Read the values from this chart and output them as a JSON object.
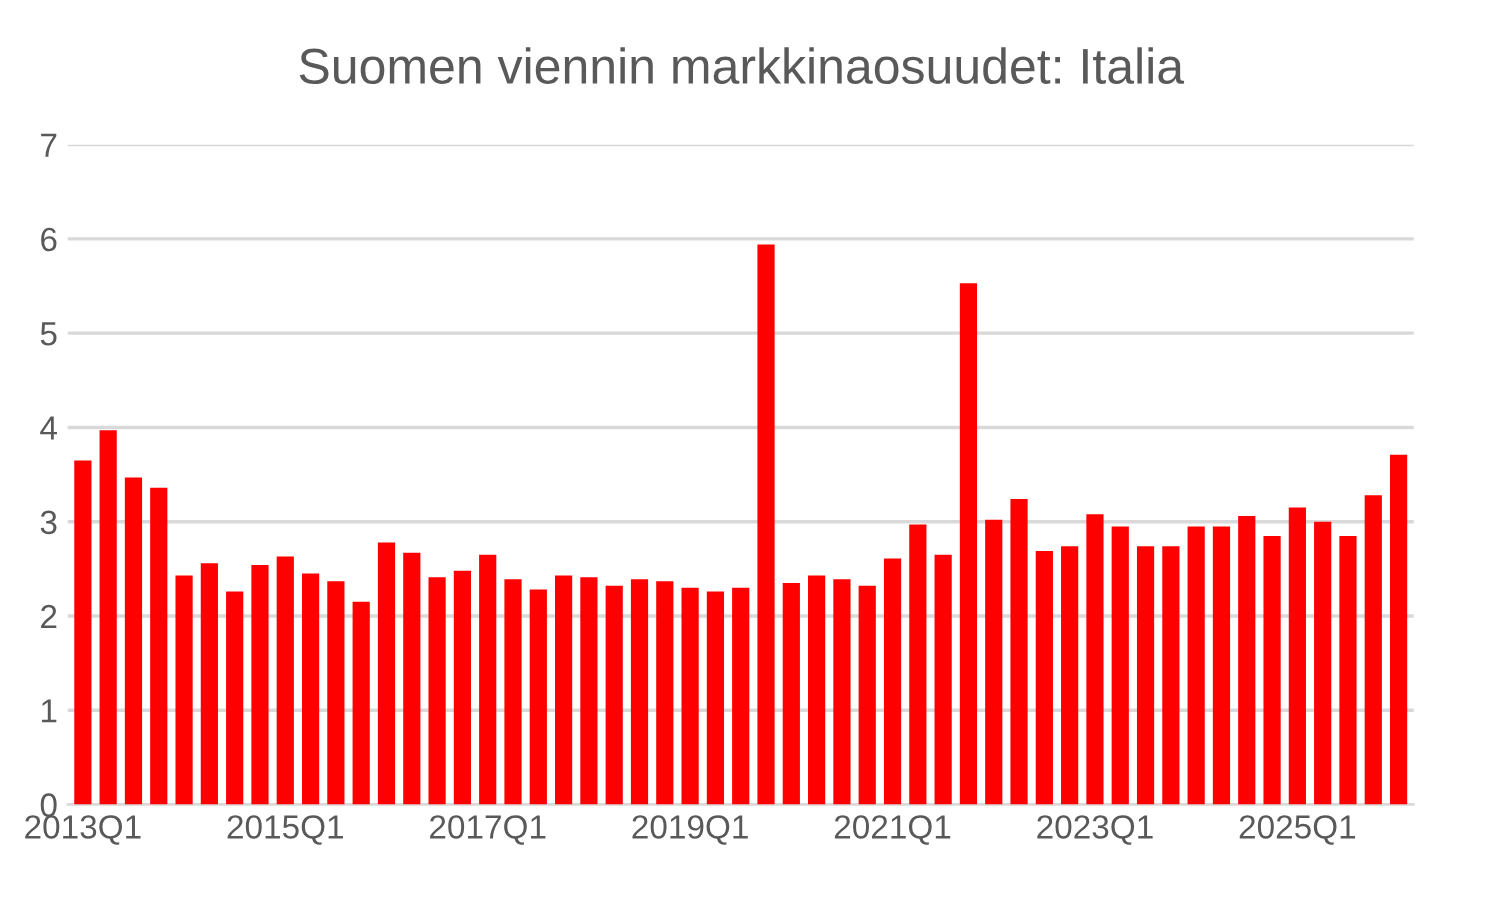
{
  "chart_data": {
    "type": "bar",
    "title": "Suomen viennin markkinaosuudet: Italia",
    "categories": [
      "2013Q1",
      null,
      null,
      null,
      null,
      null,
      null,
      null,
      "2015Q1",
      null,
      null,
      null,
      null,
      null,
      null,
      null,
      "2017Q1",
      null,
      null,
      null,
      null,
      null,
      null,
      null,
      "2019Q1",
      null,
      null,
      null,
      null,
      null,
      null,
      null,
      "2021Q1",
      null,
      null,
      null,
      null,
      null,
      null,
      null,
      "2023Q1",
      null,
      null,
      null,
      null,
      null,
      null,
      null,
      "2025Q1",
      null,
      null,
      null,
      null
    ],
    "values": [
      3.65,
      3.97,
      3.47,
      3.36,
      2.43,
      2.56,
      2.26,
      2.54,
      2.63,
      2.45,
      2.37,
      2.15,
      2.78,
      2.67,
      2.41,
      2.48,
      2.65,
      2.39,
      2.28,
      2.43,
      2.41,
      2.32,
      2.39,
      2.37,
      2.3,
      2.26,
      2.3,
      5.94,
      2.35,
      2.43,
      2.39,
      2.32,
      2.61,
      2.97,
      2.65,
      5.53,
      3.02,
      3.24,
      2.69,
      2.74,
      3.08,
      2.95,
      2.74,
      2.74,
      2.95,
      2.95,
      3.06,
      2.85,
      3.15,
      3.0,
      2.85,
      3.28,
      3.71
    ],
    "color": "#ff0000",
    "ylim": [
      0,
      7
    ],
    "yticks": [
      0,
      1,
      2,
      3,
      4,
      5,
      6,
      7
    ],
    "grid": "y"
  }
}
